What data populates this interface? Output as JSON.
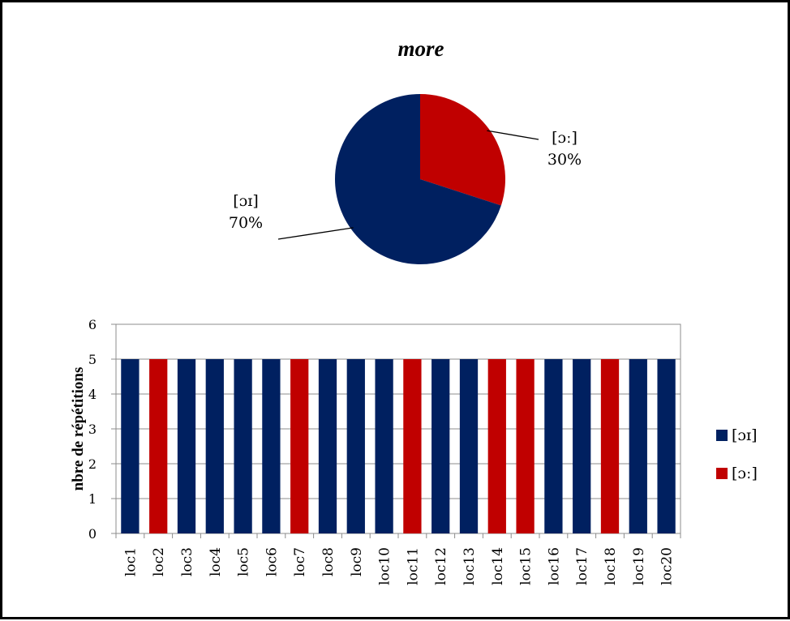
{
  "chart_data": [
    {
      "type": "pie",
      "title": "more",
      "slices": [
        {
          "label": "[ɔɪ]",
          "value": 70,
          "value_label": "70%",
          "color": "#002060"
        },
        {
          "label": "[ɔː]",
          "value": 30,
          "value_label": "30%",
          "color": "#C00000"
        }
      ]
    },
    {
      "type": "bar",
      "ylabel": "nbre de répétitions",
      "xlabel": "",
      "ylim": [
        0,
        6
      ],
      "yticks": [
        0,
        1,
        2,
        3,
        4,
        5,
        6
      ],
      "grid": true,
      "legend_position": "right",
      "categories": [
        "loc1",
        "loc2",
        "loc3",
        "loc4",
        "loc5",
        "loc6",
        "loc7",
        "loc8",
        "loc9",
        "loc10",
        "loc11",
        "loc12",
        "loc13",
        "loc14",
        "loc15",
        "loc16",
        "loc17",
        "loc18",
        "loc19",
        "loc20"
      ],
      "values": [
        5,
        5,
        5,
        5,
        5,
        5,
        5,
        5,
        5,
        5,
        5,
        5,
        5,
        5,
        5,
        5,
        5,
        5,
        5,
        5
      ],
      "bar_series": [
        "[ɔɪ]",
        "[ɔː]",
        "[ɔɪ]",
        "[ɔɪ]",
        "[ɔɪ]",
        "[ɔɪ]",
        "[ɔː]",
        "[ɔɪ]",
        "[ɔɪ]",
        "[ɔɪ]",
        "[ɔː]",
        "[ɔɪ]",
        "[ɔɪ]",
        "[ɔː]",
        "[ɔː]",
        "[ɔɪ]",
        "[ɔɪ]",
        "[ɔː]",
        "[ɔɪ]",
        "[ɔɪ]"
      ],
      "legend": [
        {
          "name": "[ɔɪ]",
          "color": "#002060"
        },
        {
          "name": "[ɔː]",
          "color": "#C00000"
        }
      ]
    }
  ]
}
